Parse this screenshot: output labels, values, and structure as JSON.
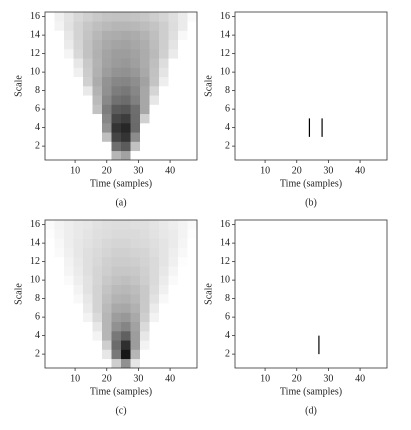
{
  "chart_data": [
    {
      "type": "heatmap",
      "label": "(a)",
      "xlabel": "Time (samples)",
      "ylabel": "Scale",
      "xlim": [
        0.5,
        48.5
      ],
      "ylim": [
        0.5,
        16.5
      ],
      "xticks": [
        10,
        20,
        30,
        40
      ],
      "yticks": [
        2,
        4,
        6,
        8,
        10,
        12,
        14,
        16
      ],
      "x_edges": [
        0.5,
        3.5,
        6.5,
        9.5,
        12.5,
        15.5,
        18.5,
        21.5,
        24.5,
        27.5,
        30.5,
        33.5,
        36.5,
        39.5,
        42.5,
        45.5,
        48.5
      ],
      "y_edges": [
        0.5,
        1.5,
        2.5,
        3.5,
        4.5,
        5.5,
        6.5,
        7.5,
        8.5,
        9.5,
        10.5,
        11.5,
        12.5,
        13.5,
        14.5,
        15.5,
        16.5
      ],
      "z": [
        [
          0,
          0,
          0,
          0,
          0,
          0,
          0,
          30,
          38,
          0,
          0,
          0,
          0,
          0,
          0,
          0
        ],
        [
          0,
          0,
          0,
          0,
          0,
          0,
          0,
          59,
          67,
          25,
          0,
          0,
          0,
          0,
          0,
          0
        ],
        [
          0,
          0,
          0,
          0,
          0,
          0,
          26,
          76,
          83,
          47,
          0,
          0,
          0,
          0,
          0,
          0
        ],
        [
          0,
          0,
          0,
          0,
          0,
          0,
          44,
          83,
          88,
          61,
          0,
          0,
          0,
          0,
          0,
          0
        ],
        [
          0,
          0,
          0,
          0,
          0,
          0,
          49,
          75,
          79,
          60,
          19,
          0,
          0,
          0,
          0,
          0
        ],
        [
          0,
          0,
          0,
          0,
          0,
          25,
          53,
          67,
          69,
          59,
          36,
          0,
          0,
          0,
          0,
          0
        ],
        [
          0,
          0,
          0,
          0,
          0,
          28,
          48,
          58,
          60,
          52,
          36,
          10,
          0,
          0,
          0,
          0
        ],
        [
          0,
          0,
          0,
          0,
          9,
          31,
          45,
          53,
          55,
          49,
          36,
          17,
          0,
          0,
          0,
          0
        ],
        [
          0,
          0,
          0,
          0,
          19,
          34,
          44,
          49,
          50,
          46,
          38,
          24,
          7,
          0,
          0,
          0
        ],
        [
          0,
          0,
          0,
          6,
          21,
          32,
          40,
          44,
          45,
          42,
          35,
          25,
          11,
          0,
          0,
          0
        ],
        [
          0,
          0,
          0,
          10,
          22,
          31,
          38,
          41,
          42,
          39,
          34,
          26,
          14,
          0,
          0,
          0
        ],
        [
          0,
          0,
          4,
          16,
          25,
          32,
          37,
          40,
          40,
          38,
          34,
          28,
          19,
          8,
          0,
          0
        ],
        [
          0,
          0,
          8,
          17,
          25,
          31,
          35,
          37,
          38,
          36,
          33,
          27,
          20,
          11,
          0,
          0
        ],
        [
          0,
          0,
          10,
          18,
          24,
          29,
          33,
          34,
          35,
          34,
          31,
          26,
          20,
          13,
          3,
          0
        ],
        [
          0,
          5,
          12,
          18,
          23,
          26,
          28,
          30,
          30,
          29,
          27,
          24,
          20,
          14,
          8,
          0
        ],
        [
          0,
          6,
          11,
          16,
          19,
          22,
          24,
          25,
          25,
          24,
          23,
          20,
          17,
          13,
          8,
          2
        ]
      ]
    },
    {
      "type": "segments",
      "label": "(b)",
      "xlabel": "Time (samples)",
      "ylabel": "Scale",
      "xlim": [
        0.5,
        48.5
      ],
      "ylim": [
        0.5,
        16.5
      ],
      "xticks": [
        10,
        20,
        30,
        40
      ],
      "yticks": [
        2,
        4,
        6,
        8,
        10,
        12,
        14,
        16
      ],
      "color": "#000000",
      "segments": [
        {
          "x": 24,
          "y": [
            3,
            5
          ]
        },
        {
          "x": 28,
          "y": [
            3,
            5
          ]
        }
      ]
    },
    {
      "type": "heatmap",
      "label": "(c)",
      "xlabel": "Time (samples)",
      "ylabel": "Scale",
      "xlim": [
        0.5,
        48.5
      ],
      "ylim": [
        0.5,
        16.5
      ],
      "xticks": [
        10,
        20,
        30,
        40
      ],
      "yticks": [
        2,
        4,
        6,
        8,
        10,
        12,
        14,
        16
      ],
      "x_edges": [
        0.5,
        3.5,
        6.5,
        9.5,
        12.5,
        15.5,
        18.5,
        21.5,
        24.5,
        27.5,
        30.5,
        33.5,
        36.5,
        39.5,
        42.5,
        45.5,
        48.5
      ],
      "y_edges": [
        0.5,
        1.5,
        2.5,
        3.5,
        4.5,
        5.5,
        6.5,
        7.5,
        8.5,
        9.5,
        10.5,
        11.5,
        12.5,
        13.5,
        14.5,
        15.5,
        16.5
      ],
      "z": [
        [
          0,
          0,
          0,
          0,
          0,
          0,
          0,
          20,
          45,
          10,
          0,
          0,
          0,
          0,
          0,
          0
        ],
        [
          0,
          0,
          0,
          0,
          0,
          0,
          10,
          55,
          95,
          30,
          0,
          0,
          0,
          0,
          0,
          0
        ],
        [
          0,
          0,
          0,
          0,
          0,
          0,
          20,
          60,
          85,
          40,
          5,
          0,
          0,
          0,
          0,
          0
        ],
        [
          0,
          0,
          0,
          0,
          0,
          5,
          30,
          55,
          65,
          40,
          10,
          0,
          0,
          0,
          0,
          0
        ],
        [
          0,
          0,
          0,
          0,
          0,
          10,
          30,
          45,
          50,
          38,
          15,
          0,
          0,
          0,
          0,
          0
        ],
        [
          0,
          0,
          0,
          0,
          5,
          15,
          30,
          40,
          42,
          35,
          20,
          5,
          0,
          0,
          0,
          0
        ],
        [
          0,
          0,
          0,
          0,
          8,
          18,
          28,
          35,
          36,
          32,
          22,
          8,
          0,
          0,
          0,
          0
        ],
        [
          0,
          0,
          0,
          3,
          10,
          18,
          26,
          31,
          32,
          29,
          22,
          12,
          3,
          0,
          0,
          0
        ],
        [
          0,
          0,
          0,
          5,
          12,
          18,
          24,
          28,
          29,
          27,
          22,
          14,
          6,
          0,
          0,
          0
        ],
        [
          0,
          0,
          2,
          7,
          12,
          17,
          22,
          25,
          26,
          24,
          20,
          15,
          8,
          2,
          0,
          0
        ],
        [
          0,
          0,
          4,
          8,
          13,
          17,
          20,
          23,
          23,
          22,
          19,
          15,
          10,
          4,
          0,
          0
        ],
        [
          0,
          0,
          5,
          9,
          13,
          16,
          19,
          21,
          21,
          20,
          18,
          15,
          11,
          6,
          1,
          0
        ],
        [
          0,
          2,
          6,
          10,
          13,
          15,
          17,
          19,
          19,
          18,
          17,
          14,
          11,
          7,
          3,
          0
        ],
        [
          0,
          3,
          7,
          10,
          12,
          14,
          16,
          17,
          17,
          16,
          15,
          13,
          11,
          8,
          4,
          0
        ],
        [
          1,
          4,
          7,
          9,
          11,
          13,
          14,
          15,
          15,
          15,
          14,
          12,
          10,
          8,
          5,
          1
        ],
        [
          2,
          5,
          7,
          9,
          10,
          12,
          13,
          14,
          14,
          13,
          13,
          11,
          9,
          7,
          5,
          2
        ]
      ]
    },
    {
      "type": "segments",
      "label": "(d)",
      "xlabel": "Time (samples)",
      "ylabel": "Scale",
      "xlim": [
        0.5,
        48.5
      ],
      "ylim": [
        0.5,
        16.5
      ],
      "xticks": [
        10,
        20,
        30,
        40
      ],
      "yticks": [
        2,
        4,
        6,
        8,
        10,
        12,
        14,
        16
      ],
      "color": "#000000",
      "segments": [
        {
          "x": 27,
          "y": [
            2,
            4
          ]
        }
      ]
    }
  ]
}
